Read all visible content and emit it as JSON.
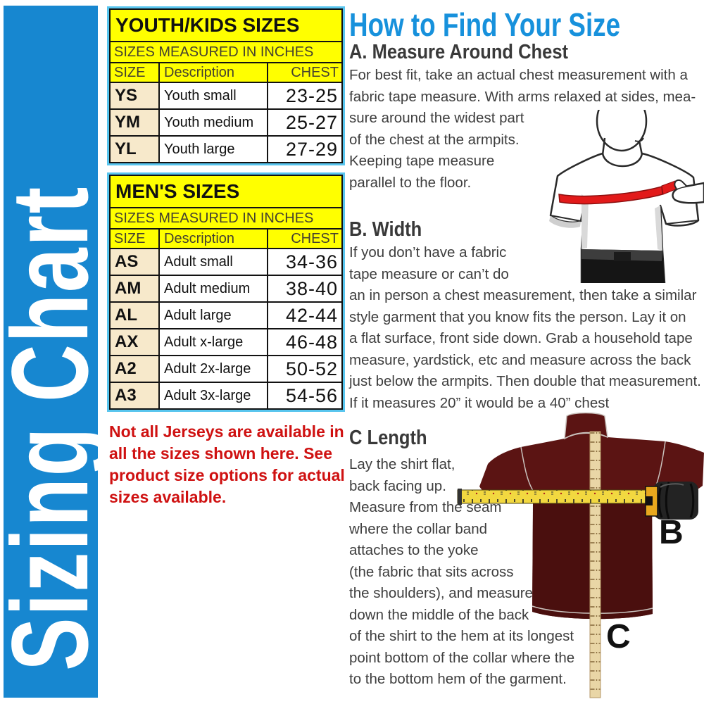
{
  "sidebar": {
    "title": "Sizing Chart"
  },
  "youth_table": {
    "title": "YOUTH/KIDS SIZES",
    "subtitle": "SIZES MEASURED IN INCHES",
    "headers": {
      "size": "SIZE",
      "description": "Description",
      "chest": "CHEST"
    },
    "rows": [
      {
        "size": "YS",
        "description": "Youth small",
        "chest": "23-25"
      },
      {
        "size": "YM",
        "description": "Youth medium",
        "chest": "25-27"
      },
      {
        "size": "YL",
        "description": "Youth large",
        "chest": "27-29"
      }
    ]
  },
  "mens_table": {
    "title": "MEN'S SIZES",
    "subtitle": "SIZES MEASURED IN INCHES",
    "headers": {
      "size": "SIZE",
      "description": "Description",
      "chest": "CHEST"
    },
    "rows": [
      {
        "size": "AS",
        "description": "Adult small",
        "chest": "34-36"
      },
      {
        "size": "AM",
        "description": "Adult medium",
        "chest": "38-40"
      },
      {
        "size": "AL",
        "description": "Adult large",
        "chest": "42-44"
      },
      {
        "size": "AX",
        "description": "Adult x-large",
        "chest": "46-48"
      },
      {
        "size": "A2",
        "description": "Adult 2x-large",
        "chest": "50-52"
      },
      {
        "size": "A3",
        "description": "Adult 3x-large",
        "chest": "54-56"
      }
    ]
  },
  "note": {
    "lines": [
      "Not all Jerseys are available in",
      "all the sizes shown here. See",
      "product size options for actual",
      "sizes available."
    ]
  },
  "guide": {
    "title": "How to Find Your Size",
    "section_a": {
      "heading": "A. Measure Around Chest",
      "lines": [
        "For best fit, take an actual chest measurement with a",
        "fabric tape measure. With arms relaxed at sides, mea-",
        "sure around the widest part",
        "of the chest at the armpits.",
        "Keeping tape measure",
        "parallel to the floor."
      ]
    },
    "section_b": {
      "heading": "B. Width",
      "lines": [
        "If you don’t have a fabric",
        "tape measure or can’t do",
        "an in person a chest measurement, then take a similar",
        "style garment that you know fits the person. Lay it on",
        "a flat surface, front side down. Grab a household tape",
        "measure, yardstick, etc and measure across the back",
        "just below the armpits. Then double that measurement.",
        "If it measures 20” it would be a 40” chest"
      ]
    },
    "section_c": {
      "heading": "C Length",
      "lines": [
        "Lay the shirt flat,",
        "back facing up.",
        "Measure from the seam",
        "where the collar band",
        "attaches to the yoke",
        "(the fabric that sits across",
        "the shoulders), and measure",
        "down the middle of the back",
        "of the shirt to the hem at its longest",
        "point bottom of the collar where the",
        "to the bottom hem of the garment."
      ]
    },
    "labels": {
      "width_marker": "B",
      "length_marker": "C"
    }
  },
  "colors": {
    "banner_blue": "#1787d0",
    "heading_blue": "#1791dc",
    "table_yellow": "#ffff00",
    "size_cell_beige": "#f7e9cb",
    "table_outline_cyan": "#58c5ee",
    "note_red": "#cf1111",
    "tape_red": "#e21a1a",
    "shirt_maroon": "#5b1413",
    "ruler_tan": "#e9d6a6",
    "tape_measure_yellow": "#f2d840"
  }
}
